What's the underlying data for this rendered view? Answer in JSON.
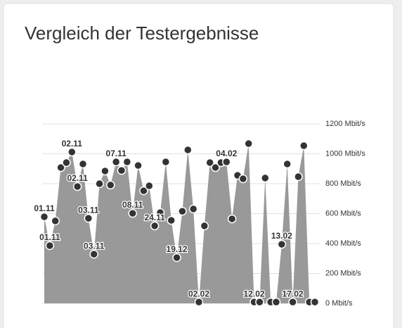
{
  "chart_data": {
    "type": "area",
    "title": "Vergleich der Testergebnisse",
    "categories": [
      "01.11",
      "01.11",
      null,
      null,
      null,
      "02.11",
      "02.11",
      null,
      "03.11",
      "03.11",
      null,
      null,
      null,
      "07.11",
      null,
      null,
      "08.11",
      null,
      null,
      null,
      "24.11",
      null,
      null,
      null,
      "19.12",
      null,
      null,
      null,
      "02.02",
      null,
      null,
      null,
      null,
      "04.02",
      null,
      null,
      null,
      null,
      "12.02",
      null,
      null,
      null,
      null,
      "13.02",
      null,
      "17.02",
      null,
      null,
      null,
      null
    ],
    "values": [
      579,
      386,
      551,
      908,
      941,
      1012,
      781,
      932,
      569,
      329,
      800,
      885,
      791,
      946,
      889,
      946,
      602,
      922,
      753,
      786,
      518,
      607,
      946,
      555,
      306,
      616,
      1026,
      631,
      9,
      518,
      941,
      908,
      941,
      946,
      565,
      856,
      833,
      1068,
      9,
      9,
      838,
      9,
      9,
      395,
      932,
      9,
      847,
      1054,
      9,
      9
    ],
    "color": "#999999",
    "marker_color": "#333333",
    "ylim": [
      0,
      1200
    ],
    "yticks": [
      {
        "value": 0,
        "label": "0 Mbit/s"
      },
      {
        "value": 200,
        "label": "200 Mbit/s"
      },
      {
        "value": 400,
        "label": "400 Mbit/s"
      },
      {
        "value": 600,
        "label": "600 Mbit/s"
      },
      {
        "value": 800,
        "label": "800 Mbit/s"
      },
      {
        "value": 1000,
        "label": "1000 Mbit/s"
      },
      {
        "value": 1200,
        "label": "1200 Mbit/s"
      }
    ],
    "grid": true
  }
}
